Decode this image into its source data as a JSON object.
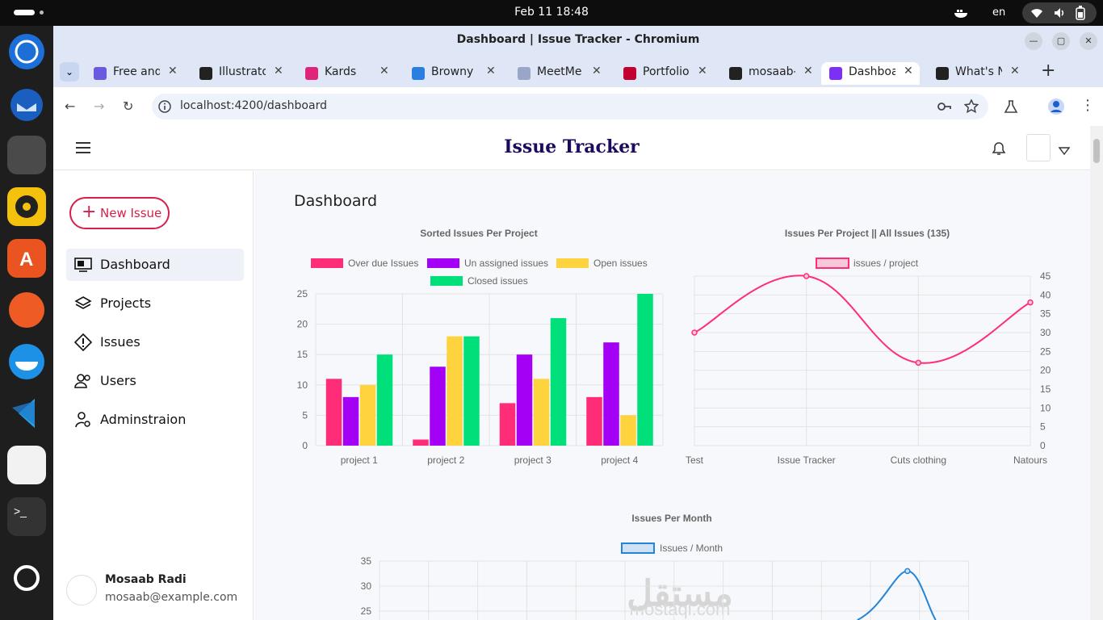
{
  "os": {
    "clock": "Feb 11  18:48",
    "lang": "en"
  },
  "browser": {
    "title": "Dashboard | Issue Tracker - Chromium",
    "url": "localhost:4200/dashboard",
    "tabs": [
      {
        "label": "Free and",
        "color": "#6a5ae0"
      },
      {
        "label": "Illustrato",
        "color": "#222222"
      },
      {
        "label": "Kards",
        "color": "#e0247a"
      },
      {
        "label": "Browny",
        "color": "#2a7de1"
      },
      {
        "label": "MeetMe",
        "color": "#9aa6c8"
      },
      {
        "label": "Portfolio",
        "color": "#c3002f"
      },
      {
        "label": "mosaab-",
        "color": "#222222"
      },
      {
        "label": "Dashboa",
        "color": "#7b2ff7"
      },
      {
        "label": "What's N",
        "color": "#222222"
      }
    ]
  },
  "app": {
    "brand": "Issue Tracker",
    "new_issue": "New Issue",
    "nav": [
      {
        "label": "Dashboard",
        "icon": "monitor-icon"
      },
      {
        "label": "Projects",
        "icon": "layers-icon"
      },
      {
        "label": "Issues",
        "icon": "alert-icon"
      },
      {
        "label": "Users",
        "icon": "users-icon"
      },
      {
        "label": "Adminstraion",
        "icon": "user-settings-icon"
      }
    ],
    "user": {
      "name": "Mosaab Radi",
      "email": "mosaab@example.com"
    },
    "page_title": "Dashboard",
    "watermark": {
      "arabic": "مستقل",
      "latin": "mostaql.com"
    }
  },
  "chart_data": [
    {
      "type": "bar",
      "title": "Sorted Issues Per Project",
      "categories": [
        "project 1",
        "project 2",
        "project 3",
        "project 4"
      ],
      "ylim": [
        0,
        25
      ],
      "yticks": [
        0,
        5,
        10,
        15,
        20,
        25
      ],
      "grid": true,
      "legend": "top",
      "series": [
        {
          "name": "Over due Issues",
          "color": "#ff2d78",
          "values": [
            11,
            1,
            7,
            8
          ]
        },
        {
          "name": "Un assigned issues",
          "color": "#a300f5",
          "values": [
            8,
            13,
            15,
            17
          ]
        },
        {
          "name": "Open issues",
          "color": "#ffd33d",
          "values": [
            10,
            18,
            11,
            5
          ]
        },
        {
          "name": "Closed issues",
          "color": "#00e07a",
          "values": [
            15,
            18,
            21,
            25
          ]
        }
      ]
    },
    {
      "type": "line",
      "title": "Issues Per Project    ||    All Issues (135)",
      "categories": [
        "Test",
        "Issue Tracker",
        "Cuts clothing",
        "Natours"
      ],
      "ylim": [
        0,
        45
      ],
      "yticks": [
        0,
        5,
        10,
        15,
        20,
        25,
        30,
        35,
        40,
        45
      ],
      "y_axis_side": "right",
      "grid": true,
      "legend": "top",
      "series": [
        {
          "name": "issues / project",
          "color": "#ff2d78",
          "values": [
            30,
            45,
            22,
            38
          ]
        }
      ]
    },
    {
      "type": "line",
      "title": "Issues Per Month",
      "ylim": [
        0,
        35
      ],
      "yticks": [
        25,
        30,
        35
      ],
      "grid": true,
      "legend": "top",
      "series": [
        {
          "name": "Issues / Month",
          "color": "#2384d8",
          "values": [
            33
          ]
        }
      ]
    }
  ]
}
